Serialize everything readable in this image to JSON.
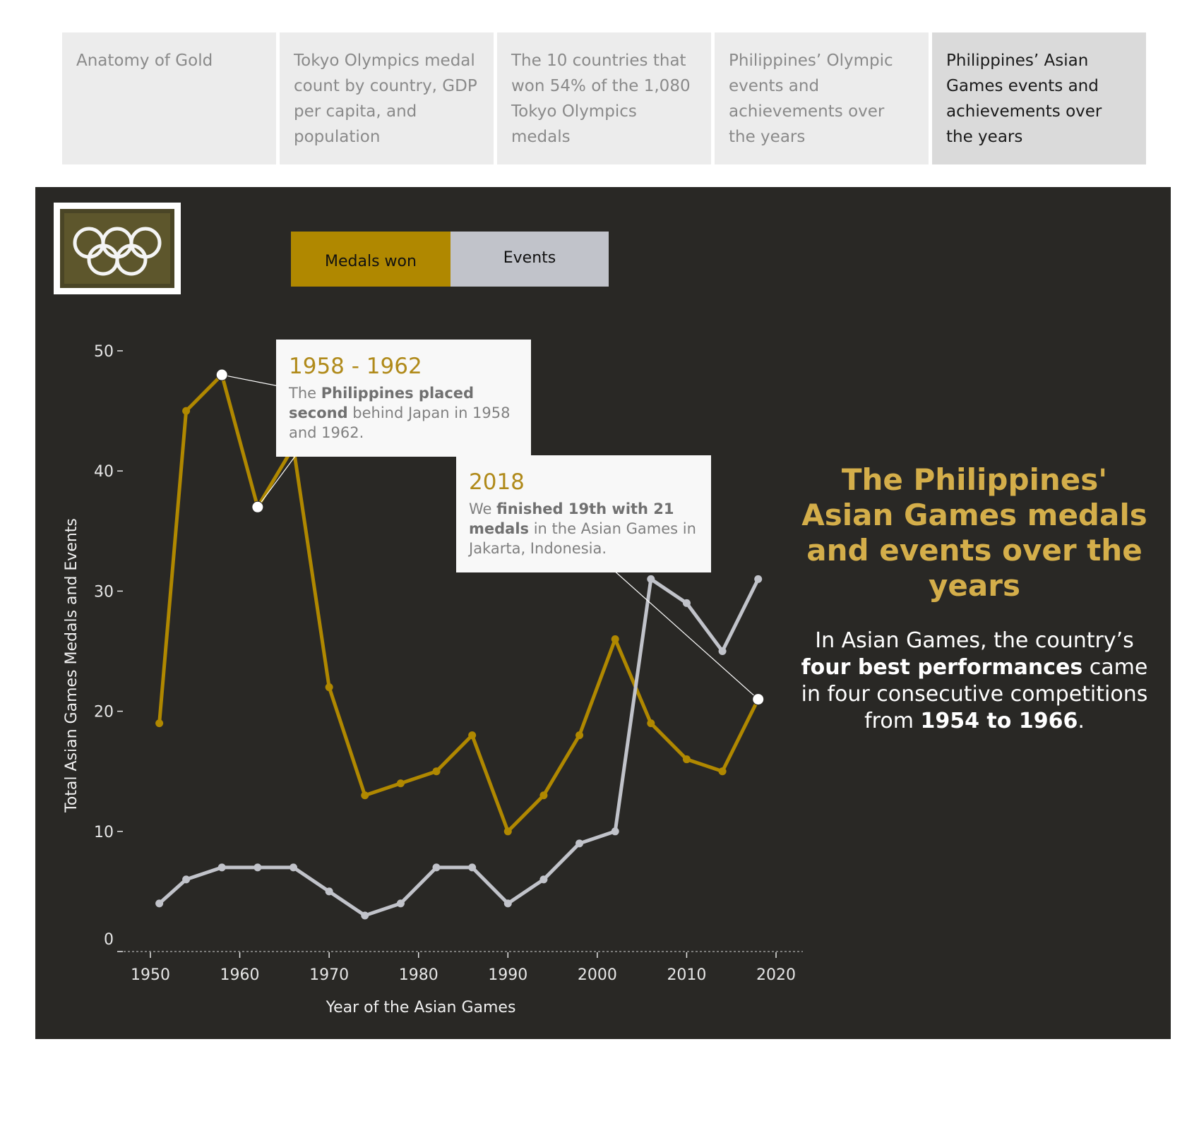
{
  "tabs": [
    {
      "label": "Anatomy of Gold"
    },
    {
      "label": "Tokyo Olympics medal count by country, GDP per capita, and population"
    },
    {
      "label": "The 10 countries that won 54% of the 1,080 Tokyo Olympics medals"
    },
    {
      "label": "Philippines’ Olympic events and achievements over the years"
    },
    {
      "label": "Philippines’ Asian Games events and achievements over the years"
    }
  ],
  "legend": {
    "medals_label": "Medals won",
    "events_label": "Events"
  },
  "annotations": {
    "a1": {
      "year": "1958 - 1962",
      "t1": "The ",
      "b1": "Philippines placed second",
      "t2": " behind Japan in 1958 and 1962."
    },
    "a2": {
      "year": "2018",
      "t1": "We ",
      "b1": "finished 19th with 21 medals",
      "t2": " in the Asian Games in Jakarta, Indonesia."
    }
  },
  "side": {
    "title": "The Philippines' Asian Games medals and events over the years",
    "t1": "In Asian Games, the country’s ",
    "b1": "four best performances",
    "t2": " came in four consecutive competitions from ",
    "b2": "1954 to 1966",
    "t3": "."
  },
  "colors": {
    "background": "#292825",
    "medals": "#b08800",
    "events": "#c1c3ca",
    "title_gold": "#d4ae4a"
  },
  "chart_data": {
    "type": "line",
    "title": "",
    "xlabel": "Year of the Asian Games",
    "ylabel": "Total Asian Games Medals and Events",
    "xlim": [
      1947,
      2023
    ],
    "ylim": [
      0,
      50
    ],
    "x_ticks": [
      1950,
      1960,
      1970,
      1980,
      1990,
      2000,
      2010,
      2020
    ],
    "y_ticks": [
      0,
      10,
      20,
      30,
      40,
      50
    ],
    "x": [
      1951,
      1954,
      1958,
      1962,
      1966,
      1970,
      1974,
      1978,
      1982,
      1986,
      1990,
      1994,
      1998,
      2002,
      2006,
      2010,
      2014,
      2018
    ],
    "series": [
      {
        "name": "Medals won",
        "color": "#b08800",
        "values": [
          19,
          45,
          48,
          37,
          42,
          22,
          13,
          14,
          15,
          18,
          10,
          13,
          18,
          26,
          19,
          16,
          15,
          21
        ]
      },
      {
        "name": "Events",
        "color": "#c1c3ca",
        "values": [
          4,
          6,
          7,
          7,
          7,
          5,
          3,
          4,
          7,
          7,
          4,
          6,
          9,
          10,
          31,
          29,
          25,
          31
        ]
      }
    ],
    "highlights": [
      {
        "series": "Medals won",
        "x": 1958,
        "y": 48
      },
      {
        "series": "Medals won",
        "x": 1962,
        "y": 37
      },
      {
        "series": "Medals won",
        "x": 2018,
        "y": 21
      }
    ]
  }
}
